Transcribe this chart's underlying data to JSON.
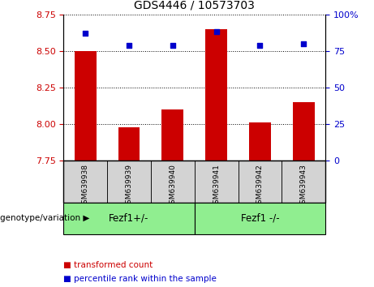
{
  "title": "GDS4446 / 10573703",
  "samples": [
    "GSM639938",
    "GSM639939",
    "GSM639940",
    "GSM639941",
    "GSM639942",
    "GSM639943"
  ],
  "bar_values": [
    8.5,
    7.98,
    8.1,
    8.65,
    8.01,
    8.15
  ],
  "bar_base": 7.75,
  "dot_values": [
    87,
    79,
    79,
    88,
    79,
    80
  ],
  "left_ylim": [
    7.75,
    8.75
  ],
  "left_yticks": [
    7.75,
    8.0,
    8.25,
    8.5,
    8.75
  ],
  "right_ylim": [
    0,
    100
  ],
  "right_yticks": [
    0,
    25,
    50,
    75,
    100
  ],
  "bar_color": "#cc0000",
  "dot_color": "#0000cc",
  "groups": [
    {
      "label": "Fezf1+/-",
      "start": 0,
      "end": 3
    },
    {
      "label": "Fezf1 -/-",
      "start": 3,
      "end": 6
    }
  ],
  "legend_items": [
    {
      "label": "transformed count",
      "color": "#cc0000"
    },
    {
      "label": "percentile rank within the sample",
      "color": "#0000cc"
    }
  ],
  "grid_linestyle": "dotted",
  "tick_label_color_left": "#cc0000",
  "tick_label_color_right": "#0000cc",
  "sample_box_color": "#d3d3d3",
  "group_box_color": "#90ee90",
  "fig_width": 4.61,
  "fig_height": 3.54,
  "right_tick_labels": [
    "0",
    "25",
    "50",
    "75",
    "100%"
  ]
}
